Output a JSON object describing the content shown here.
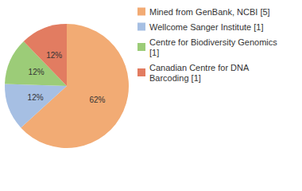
{
  "chart_data": {
    "type": "pie",
    "categories": [
      "Mined from GenBank, NCBI [5]",
      "Wellcome Sanger Institute [1]",
      "Centre for Biodiversity Genomics [1]",
      "Canadian Centre for DNA Barcoding [1]"
    ],
    "values": [
      62,
      12,
      12,
      12
    ],
    "value_labels": [
      "62%",
      "12%",
      "12%",
      "12%"
    ],
    "colors": [
      "#f2ab74",
      "#a6bfe3",
      "#9ccc78",
      "#e27c61"
    ],
    "data_labels": true,
    "legend": "top-right"
  }
}
